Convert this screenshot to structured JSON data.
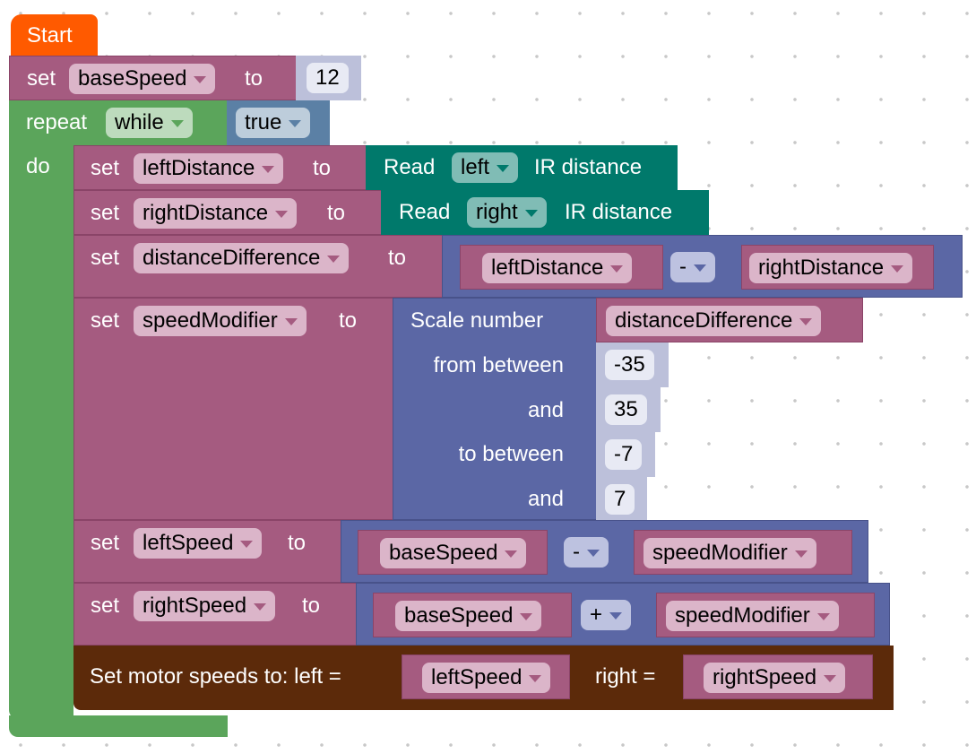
{
  "colors": {
    "start": "#ff5a00",
    "variables": "#a55b80",
    "loops": "#5ba55b",
    "logic": "#5b80a5",
    "math": "#5b67a5",
    "sensor": "#00796b",
    "motor": "#5c2a0a"
  },
  "start": {
    "label": "Start"
  },
  "set_base": {
    "set": "set",
    "var": "baseSpeed",
    "to": "to",
    "value": "12"
  },
  "repeat": {
    "label": "repeat",
    "mode": "while",
    "condition": "true",
    "do": "do"
  },
  "set_left_dist": {
    "set": "set",
    "var": "leftDistance",
    "to": "to",
    "read": "Read",
    "side": "left",
    "suffix": "IR distance"
  },
  "set_right_dist": {
    "set": "set",
    "var": "rightDistance",
    "to": "to",
    "read": "Read",
    "side": "right",
    "suffix": "IR distance"
  },
  "set_diff": {
    "set": "set",
    "var": "distanceDifference",
    "to": "to",
    "a": "leftDistance",
    "op": "-",
    "b": "rightDistance"
  },
  "set_mod": {
    "set": "set",
    "var": "speedModifier",
    "to": "to",
    "scale": "Scale number",
    "input": "distanceDifference",
    "from": "from between",
    "from_low": "-35",
    "and1": "and",
    "from_high": "35",
    "to_between": "to between",
    "to_low": "-7",
    "and2": "and",
    "to_high": "7"
  },
  "set_left_speed": {
    "set": "set",
    "var": "leftSpeed",
    "to": "to",
    "a": "baseSpeed",
    "op": "-",
    "b": "speedModifier"
  },
  "set_right_speed": {
    "set": "set",
    "var": "rightSpeed",
    "to": "to",
    "a": "baseSpeed",
    "op": "+",
    "b": "speedModifier"
  },
  "motor": {
    "label": "Set motor speeds to: left =",
    "left": "leftSpeed",
    "right_label": "right =",
    "right": "rightSpeed"
  }
}
